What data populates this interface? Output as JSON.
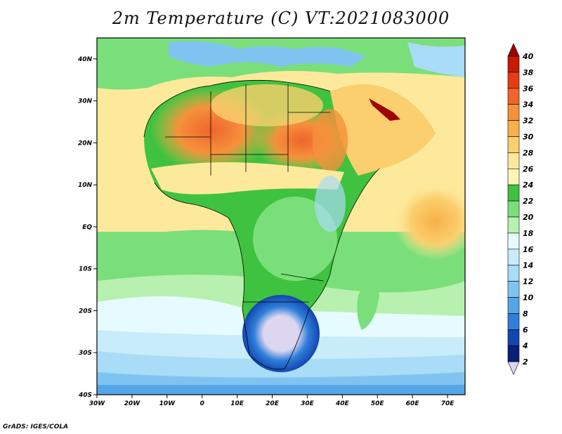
{
  "title": "2m Temperature (C) VT:2021083000",
  "footer": "GrADS: IGES/COLA",
  "map": {
    "lat_labels": [
      "40N",
      "30N",
      "20N",
      "10N",
      "EQ",
      "10S",
      "20S",
      "30S",
      "40S"
    ],
    "lon_labels": [
      "30W",
      "20W",
      "10W",
      "0",
      "10E",
      "20E",
      "30E",
      "40E",
      "50E",
      "60E",
      "70E"
    ],
    "lon_range": [
      -30,
      75
    ],
    "lat_range": [
      -40,
      45
    ]
  },
  "legend": {
    "labels": [
      "40",
      "38",
      "36",
      "34",
      "32",
      "30",
      "28",
      "26",
      "24",
      "22",
      "20",
      "18",
      "16",
      "14",
      "12",
      "10",
      "8",
      "6",
      "4",
      "2"
    ],
    "colors": [
      "#a00000",
      "#c81a00",
      "#e63c14",
      "#f0642d",
      "#f5913c",
      "#f8b04a",
      "#fbcf6e",
      "#fde99b",
      "#fff5b4",
      "#3fc23f",
      "#7adf7a",
      "#b8f0b0",
      "#e6fbff",
      "#c8ecfa",
      "#a8dcf7",
      "#7fc4f0",
      "#55a6e8",
      "#2f7fd9",
      "#1346b0",
      "#0a1f78"
    ],
    "below_color": "#dcd6f0"
  }
}
